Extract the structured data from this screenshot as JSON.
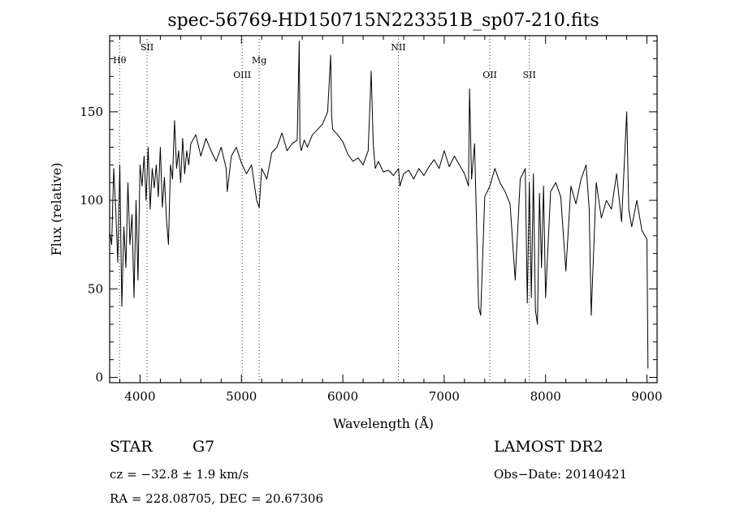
{
  "chart_data": {
    "type": "line",
    "title": "spec-56769-HD150715N223351B_sp07-210.fits",
    "xlabel": "Wavelength (Å)",
    "ylabel": "Flux (relative)",
    "xlim": [
      3700,
      9100
    ],
    "ylim": [
      -3,
      193
    ],
    "xticks": [
      4000,
      5000,
      6000,
      7000,
      8000,
      9000
    ],
    "xtick_labels": [
      "4000",
      "5000",
      "6000",
      "7000",
      "8000",
      "9000"
    ],
    "yticks": [
      0,
      50,
      100,
      150
    ],
    "ytick_labels": [
      "0",
      "50",
      "100",
      "150"
    ],
    "grid": false,
    "line_color": "#000000",
    "spectral_lines": [
      {
        "label": "Hθ",
        "wavelength": 3798,
        "row": "upper"
      },
      {
        "label": "SII",
        "wavelength": 4069,
        "row": "top"
      },
      {
        "label": "OIII",
        "wavelength": 5007,
        "row": "lower"
      },
      {
        "label": "Mg",
        "wavelength": 5175,
        "row": "upper"
      },
      {
        "label": "NII",
        "wavelength": 6548,
        "row": "top"
      },
      {
        "label": "OII",
        "wavelength": 7450,
        "row": "lower"
      },
      {
        "label": "SII",
        "wavelength": 7840,
        "row": "lower"
      }
    ],
    "series": [
      {
        "x": [
          3700,
          3720,
          3740,
          3760,
          3780,
          3800,
          3820,
          3840,
          3860,
          3880,
          3900,
          3920,
          3940,
          3960,
          3980,
          4000,
          4020,
          4040,
          4060,
          4080,
          4100,
          4120,
          4140,
          4160,
          4180,
          4200,
          4220,
          4240,
          4260,
          4280,
          4300,
          4320,
          4340,
          4360,
          4380,
          4400,
          4420,
          4440,
          4460,
          4480,
          4500,
          4550,
          4600,
          4650,
          4700,
          4750,
          4800,
          4850,
          4860,
          4900,
          4950,
          5000,
          5050,
          5100,
          5150,
          5175,
          5200,
          5250,
          5300,
          5350,
          5400,
          5450,
          5500,
          5550,
          5570,
          5577,
          5590,
          5620,
          5650,
          5700,
          5750,
          5800,
          5850,
          5880,
          5890,
          5900,
          5950,
          6000,
          6050,
          6100,
          6150,
          6200,
          6250,
          6280,
          6300,
          6320,
          6350,
          6400,
          6450,
          6500,
          6550,
          6563,
          6600,
          6650,
          6700,
          6750,
          6800,
          6850,
          6900,
          6950,
          7000,
          7050,
          7100,
          7150,
          7200,
          7240,
          7250,
          7270,
          7300,
          7340,
          7360,
          7400,
          7450,
          7500,
          7550,
          7600,
          7650,
          7700,
          7750,
          7800,
          7820,
          7840,
          7860,
          7880,
          7900,
          7920,
          7940,
          7960,
          7980,
          8000,
          8050,
          8100,
          8150,
          8200,
          8250,
          8300,
          8350,
          8400,
          8430,
          8450,
          8500,
          8550,
          8600,
          8650,
          8700,
          8750,
          8800,
          8820,
          8850,
          8900,
          8950,
          8980,
          9000,
          9010
        ],
        "y": [
          82,
          75,
          118,
          95,
          65,
          120,
          40,
          85,
          62,
          110,
          75,
          92,
          45,
          100,
          55,
          120,
          108,
          125,
          100,
          130,
          95,
          118,
          107,
          120,
          102,
          130,
          96,
          113,
          90,
          75,
          120,
          112,
          145,
          118,
          128,
          110,
          135,
          115,
          128,
          120,
          132,
          137,
          125,
          135,
          128,
          122,
          130,
          118,
          105,
          125,
          130,
          121,
          115,
          120,
          100,
          96,
          118,
          112,
          127,
          130,
          138,
          128,
          132,
          134,
          190,
          132,
          128,
          134,
          130,
          137,
          140,
          143,
          150,
          182,
          148,
          140,
          137,
          133,
          126,
          122,
          124,
          120,
          128,
          173,
          132,
          118,
          122,
          116,
          117,
          114,
          118,
          108,
          115,
          117,
          112,
          118,
          114,
          119,
          123,
          118,
          128,
          119,
          125,
          120,
          115,
          108,
          163,
          112,
          132,
          40,
          35,
          102,
          108,
          118,
          110,
          105,
          98,
          55,
          112,
          118,
          42,
          110,
          45,
          115,
          38,
          30,
          104,
          62,
          108,
          45,
          105,
          110,
          102,
          60,
          108,
          98,
          112,
          120,
          95,
          35,
          110,
          90,
          100,
          95,
          115,
          88,
          150,
          95,
          85,
          100,
          83,
          80,
          78,
          5
        ]
      }
    ],
    "info": {
      "object_type": "STAR",
      "subclass": "G7",
      "survey": "LAMOST DR2",
      "cz": "cz = −32.8 ± 1.9 km/s",
      "obs_date": "Obs−Date: 20140421",
      "coords": "RA = 228.08705, DEC =  20.67306"
    }
  }
}
